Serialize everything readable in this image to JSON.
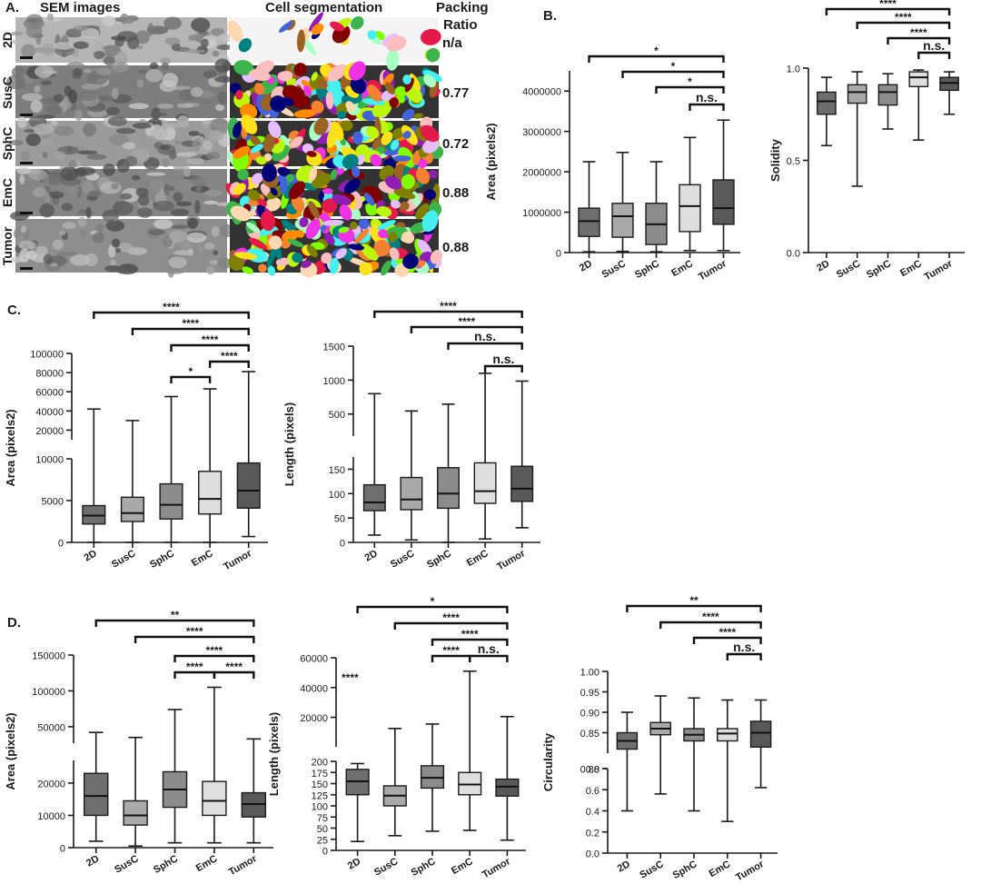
{
  "panel_a": {
    "label": "A.",
    "col_sem": "SEM images",
    "col_seg": "Cell segmentation",
    "col_pack_1": "Packing",
    "col_pack_2": "Ratio",
    "rows": [
      {
        "name": "2D",
        "ratio": "n/a"
      },
      {
        "name": "SusC",
        "ratio": "0.77"
      },
      {
        "name": "SphC",
        "ratio": "0.72"
      },
      {
        "name": "EmC",
        "ratio": "0.88"
      },
      {
        "name": "Tumor",
        "ratio": "0.88"
      }
    ]
  },
  "panel_labels": {
    "b": "B.",
    "c": "C.",
    "d": "D."
  },
  "colors": {
    "2D": "#6e6e6e",
    "SusC": "#a9a9a9",
    "SphC": "#8c8c8c",
    "EmC": "#dedede",
    "Tumor": "#595959",
    "segmentation_palette": [
      "#e6194b",
      "#3cb44b",
      "#ffe119",
      "#4363d8",
      "#f58231",
      "#911eb4",
      "#46f0f0",
      "#f032e6",
      "#bcf60c",
      "#fabebe",
      "#008080",
      "#e6beff",
      "#9a6324",
      "#ffd8b1",
      "#800000",
      "#aaffc3",
      "#808000",
      "#000075",
      "#ff8c00",
      "#7fff00"
    ]
  },
  "chart_data": [
    {
      "id": "b1",
      "type": "box",
      "title": "",
      "xlabel": "",
      "ylabel": "Area (pixels2)",
      "categories": [
        "2D",
        "SusC",
        "SphC",
        "EmC",
        "Tumor"
      ],
      "ylim": [
        0,
        4500000
      ],
      "yticks": [
        0,
        1000000,
        2000000,
        3000000,
        4000000
      ],
      "yticklabels": [
        "0",
        "1000000",
        "2000000",
        "3000000",
        "4000000"
      ],
      "boxes": [
        {
          "min": 20000,
          "q1": 400000,
          "median": 780000,
          "q3": 1100000,
          "max": 2250000
        },
        {
          "min": 30000,
          "q1": 380000,
          "median": 900000,
          "q3": 1220000,
          "max": 2480000
        },
        {
          "min": 20000,
          "q1": 200000,
          "median": 700000,
          "q3": 1220000,
          "max": 2250000
        },
        {
          "min": 50000,
          "q1": 520000,
          "median": 1150000,
          "q3": 1680000,
          "max": 2850000
        },
        {
          "min": 50000,
          "q1": 700000,
          "median": 1100000,
          "q3": 1800000,
          "max": 3280000
        }
      ],
      "significance": [
        {
          "from": 0,
          "to": 4,
          "label": "*"
        },
        {
          "from": 1,
          "to": 4,
          "label": "*"
        },
        {
          "from": 2,
          "to": 4,
          "label": "*"
        },
        {
          "from": 3,
          "to": 4,
          "label": "n.s."
        }
      ]
    },
    {
      "id": "b2",
      "type": "box",
      "ylabel": "Solidity",
      "categories": [
        "2D",
        "SusC",
        "SphC",
        "EmC",
        "Tumor"
      ],
      "ylim": [
        0,
        1.0
      ],
      "yticks": [
        0,
        0.5,
        1.0
      ],
      "yticklabels": [
        "0.0",
        "0.5",
        "1.0"
      ],
      "boxes": [
        {
          "min": 0.58,
          "q1": 0.75,
          "median": 0.82,
          "q3": 0.87,
          "max": 0.95
        },
        {
          "min": 0.36,
          "q1": 0.81,
          "median": 0.87,
          "q3": 0.91,
          "max": 0.98
        },
        {
          "min": 0.67,
          "q1": 0.8,
          "median": 0.87,
          "q3": 0.91,
          "max": 0.97
        },
        {
          "min": 0.61,
          "q1": 0.9,
          "median": 0.95,
          "q3": 0.98,
          "max": 0.99
        },
        {
          "min": 0.75,
          "q1": 0.88,
          "median": 0.92,
          "q3": 0.95,
          "max": 0.98
        }
      ],
      "significance": [
        {
          "from": 0,
          "to": 4,
          "label": "****"
        },
        {
          "from": 1,
          "to": 4,
          "label": "****"
        },
        {
          "from": 2,
          "to": 4,
          "label": "****"
        },
        {
          "from": 3,
          "to": 4,
          "label": "n.s."
        }
      ]
    },
    {
      "id": "c1",
      "type": "box",
      "ylabel": "Area (pixels2)",
      "categories": [
        "2D",
        "SusC",
        "SphC",
        "EmC",
        "Tumor"
      ],
      "split": {
        "lower": [
          0,
          10000
        ],
        "upper": [
          10000,
          100000
        ]
      },
      "yticks_lower": [
        0,
        5000,
        10000
      ],
      "yticklabels_lower": [
        "0",
        "5000",
        "10000"
      ],
      "yticks_upper": [
        20000,
        40000,
        60000,
        80000,
        100000
      ],
      "yticklabels_upper": [
        "20000",
        "40000",
        "60000",
        "80000",
        "100000"
      ],
      "boxes": [
        {
          "min": 0,
          "q1": 2200,
          "median": 3200,
          "q3": 4400,
          "max": 42000
        },
        {
          "min": 0,
          "q1": 2500,
          "median": 3500,
          "q3": 5400,
          "max": 30000
        },
        {
          "min": 0,
          "q1": 2800,
          "median": 4500,
          "q3": 7000,
          "max": 55000
        },
        {
          "min": 0,
          "q1": 3400,
          "median": 5200,
          "q3": 8500,
          "max": 63000
        },
        {
          "min": 700,
          "q1": 4100,
          "median": 6200,
          "q3": 9500,
          "max": 81000
        }
      ],
      "significance": [
        {
          "from": 0,
          "to": 4,
          "label": "****"
        },
        {
          "from": 1,
          "to": 4,
          "label": "****"
        },
        {
          "from": 2,
          "to": 4,
          "label": "****"
        },
        {
          "from": 3,
          "to": 4,
          "label": "****"
        },
        {
          "from": 2,
          "to": 3,
          "label": "*"
        }
      ]
    },
    {
      "id": "c2",
      "type": "box",
      "ylabel": "Length (pixels)",
      "categories": [
        "2D",
        "SusC",
        "SphC",
        "EmC",
        "Tumor"
      ],
      "split": {
        "lower": [
          0,
          175
        ],
        "upper": [
          175,
          1500
        ]
      },
      "yticks_lower": [
        0,
        50,
        100,
        150
      ],
      "yticklabels_lower": [
        "0",
        "50",
        "100",
        "150"
      ],
      "yticks_upper": [
        500,
        1000,
        1500
      ],
      "yticklabels_upper": [
        "500",
        "1000",
        "1500"
      ],
      "boxes": [
        {
          "min": 15,
          "q1": 65,
          "median": 82,
          "q3": 118,
          "max": 800
        },
        {
          "min": 5,
          "q1": 67,
          "median": 88,
          "q3": 133,
          "max": 545
        },
        {
          "min": 0,
          "q1": 70,
          "median": 100,
          "q3": 153,
          "max": 645
        },
        {
          "min": 7,
          "q1": 80,
          "median": 105,
          "q3": 163,
          "max": 1100
        },
        {
          "min": 30,
          "q1": 84,
          "median": 110,
          "q3": 156,
          "max": 985
        }
      ],
      "significance": [
        {
          "from": 0,
          "to": 4,
          "label": "****"
        },
        {
          "from": 1,
          "to": 4,
          "label": "****"
        },
        {
          "from": 2,
          "to": 4,
          "label": "n.s."
        },
        {
          "from": 3,
          "to": 4,
          "label": "n.s."
        }
      ]
    },
    {
      "id": "d1",
      "type": "box",
      "ylabel": "Area (pixels2)",
      "categories": [
        "2D",
        "SusC",
        "SphC",
        "EmC",
        "Tumor"
      ],
      "split": {
        "lower": [
          0,
          27000
        ],
        "upper": [
          27000,
          150000
        ]
      },
      "yticks_lower": [
        0,
        10000,
        20000
      ],
      "yticklabels_lower": [
        "0",
        "10000",
        "20000"
      ],
      "yticks_upper": [
        50000,
        100000,
        150000
      ],
      "yticklabels_upper": [
        "50000",
        "100000",
        "150000"
      ],
      "boxes": [
        {
          "min": 2000,
          "q1": 10000,
          "median": 16000,
          "q3": 23000,
          "max": 42000
        },
        {
          "min": 500,
          "q1": 7000,
          "median": 10000,
          "q3": 14500,
          "max": 35000
        },
        {
          "min": 1500,
          "q1": 12500,
          "median": 18000,
          "q3": 23500,
          "max": 74000
        },
        {
          "min": 1500,
          "q1": 10000,
          "median": 14500,
          "q3": 20500,
          "max": 105000
        },
        {
          "min": 1500,
          "q1": 9500,
          "median": 13500,
          "q3": 17000,
          "max": 33000
        }
      ],
      "significance": [
        {
          "from": 0,
          "to": 4,
          "label": "**"
        },
        {
          "from": 1,
          "to": 4,
          "label": "****"
        },
        {
          "from": 2,
          "to": 4,
          "label": "****"
        },
        {
          "from": 2,
          "to": 3,
          "label": "****"
        },
        {
          "from": 3,
          "to": 4,
          "label": "****"
        }
      ]
    },
    {
      "id": "d2",
      "type": "box",
      "ylabel": "Length (pixels)",
      "categories": [
        "2D",
        "SusC",
        "SphC",
        "EmC",
        "Tumor"
      ],
      "split": {
        "lower": [
          0,
          200
        ],
        "upper": [
          200,
          60000
        ]
      },
      "yticks_lower": [
        0,
        25,
        50,
        75,
        100,
        125,
        150,
        175,
        200
      ],
      "yticklabels_lower": [
        "0",
        "25",
        "50",
        "75",
        "100",
        "125",
        "150",
        "175",
        "200"
      ],
      "yticks_upper": [
        20000,
        40000,
        60000
      ],
      "yticklabels_upper": [
        "20000",
        "40000",
        "60000"
      ],
      "boxes": [
        {
          "min": 20,
          "q1": 125,
          "median": 155,
          "q3": 182,
          "max": 195
        },
        {
          "min": 33,
          "q1": 100,
          "median": 123,
          "q3": 145,
          "max": 12500
        },
        {
          "min": 43,
          "q1": 140,
          "median": 163,
          "q3": 190,
          "max": 15500
        },
        {
          "min": 45,
          "q1": 125,
          "median": 148,
          "q3": 175,
          "max": 51000
        },
        {
          "min": 23,
          "q1": 122,
          "median": 143,
          "q3": 160,
          "max": 20500
        }
      ],
      "annotation": "****",
      "significance": [
        {
          "from": 0,
          "to": 4,
          "label": "*"
        },
        {
          "from": 1,
          "to": 4,
          "label": "****"
        },
        {
          "from": 2,
          "to": 4,
          "label": "****"
        },
        {
          "from": 2,
          "to": 3,
          "label": "****"
        },
        {
          "from": 3,
          "to": 4,
          "label": "n.s."
        }
      ]
    },
    {
      "id": "d3",
      "type": "box",
      "ylabel": "Circularity",
      "categories": [
        "2D",
        "SusC",
        "SphC",
        "EmC",
        "Tumor"
      ],
      "split": {
        "lower": [
          0,
          0.8
        ],
        "upper": [
          0.8,
          1.0
        ]
      },
      "yticks_lower": [
        0,
        0.2,
        0.4,
        0.6,
        0.8
      ],
      "yticklabels_lower": [
        "0.0",
        "0.2",
        "0.4",
        "0.6",
        "0.8"
      ],
      "yticks_upper": [
        0.8,
        0.85,
        0.9,
        0.95,
        1.0
      ],
      "yticklabels_upper": [
        "0.80",
        "0.85",
        "0.90",
        "0.95",
        "1.00"
      ],
      "boxes": [
        {
          "min": 0.4,
          "q1": 0.81,
          "median": 0.83,
          "q3": 0.85,
          "max": 0.9
        },
        {
          "min": 0.56,
          "q1": 0.845,
          "median": 0.86,
          "q3": 0.875,
          "max": 0.94
        },
        {
          "min": 0.4,
          "q1": 0.83,
          "median": 0.845,
          "q3": 0.86,
          "max": 0.935
        },
        {
          "min": 0.3,
          "q1": 0.83,
          "median": 0.848,
          "q3": 0.86,
          "max": 0.93
        },
        {
          "min": 0.62,
          "q1": 0.815,
          "median": 0.85,
          "q3": 0.878,
          "max": 0.93
        }
      ],
      "significance": [
        {
          "from": 0,
          "to": 4,
          "label": "**"
        },
        {
          "from": 1,
          "to": 4,
          "label": "****"
        },
        {
          "from": 2,
          "to": 4,
          "label": "****"
        },
        {
          "from": 3,
          "to": 4,
          "label": "n.s."
        }
      ]
    }
  ]
}
